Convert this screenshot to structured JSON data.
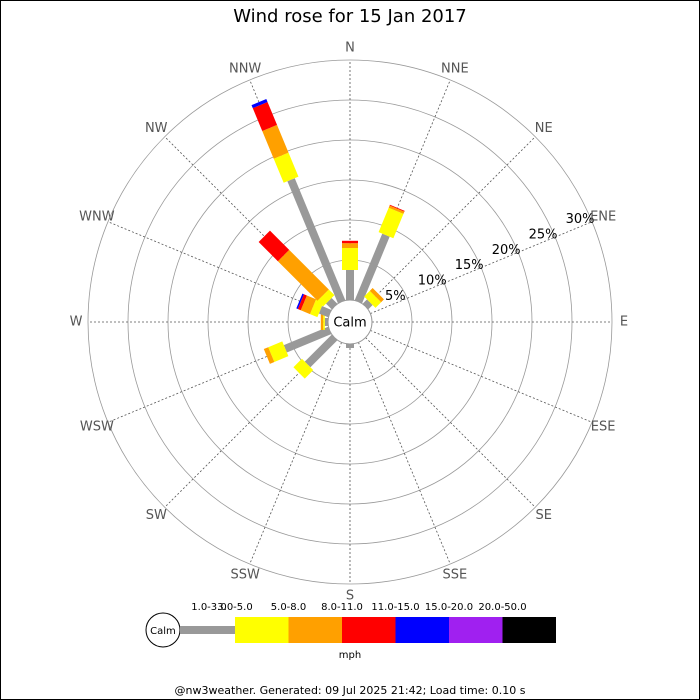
{
  "chart_data": {
    "type": "windrose",
    "title": "Wind rose for 15 Jan 2017",
    "directions": [
      "N",
      "NNE",
      "NE",
      "ENE",
      "E",
      "ESE",
      "SE",
      "SSE",
      "S",
      "SSW",
      "SW",
      "WSW",
      "W",
      "WNW",
      "NW",
      "NNW"
    ],
    "series": [
      {
        "name": "1.0-3.0",
        "color": "#999999",
        "values": [
          3.75,
          9,
          0.75,
          0,
          0,
          0,
          0,
          0,
          0.5,
          0,
          4.75,
          6,
          0.4,
          1.25,
          1,
          16.5
        ]
      },
      {
        "name": "3.0-5.0",
        "color": "#ffff00",
        "values": [
          2.75,
          3.3,
          1,
          0,
          0,
          0,
          0,
          0,
          0,
          0,
          1.5,
          1.9,
          0.2,
          1,
          1,
          3.25
        ]
      },
      {
        "name": "5.0-8.0",
        "color": "#ffa000",
        "values": [
          0.6,
          0.3,
          0.5,
          0,
          0,
          0,
          0,
          0,
          0,
          0,
          0,
          0.6,
          0.3,
          1.25,
          7,
          3.75
        ]
      },
      {
        "name": "8.0-11.0",
        "color": "#ff0000",
        "values": [
          0.3,
          0.1,
          0,
          0,
          0,
          0,
          0,
          0,
          0,
          0,
          0,
          0,
          0,
          0.4,
          3.4,
          3.1
        ]
      },
      {
        "name": "11.0-15.0",
        "color": "#0000ff",
        "values": [
          0,
          0,
          0,
          0,
          0,
          0,
          0,
          0,
          0,
          0,
          0,
          0,
          0,
          0.2,
          0,
          0.4
        ]
      },
      {
        "name": "15.0-20.0",
        "color": "#a020f0",
        "values": [
          0,
          0,
          0,
          0,
          0,
          0,
          0,
          0,
          0,
          0,
          0,
          0,
          0,
          0,
          0,
          0
        ]
      },
      {
        "name": "20.0-50.0",
        "color": "#000000",
        "values": [
          0,
          0,
          0,
          0,
          0,
          0,
          0,
          0,
          0,
          0,
          0,
          0,
          0,
          0,
          0,
          0
        ]
      }
    ],
    "rlim": [
      0,
      30
    ],
    "rticks": [
      {
        "value": 5,
        "label": "5%"
      },
      {
        "value": 10,
        "label": "10%"
      },
      {
        "value": 15,
        "label": "15%"
      },
      {
        "value": 20,
        "label": "20%"
      },
      {
        "value": 25,
        "label": "25%"
      },
      {
        "value": 30,
        "label": "30%"
      }
    ],
    "calm_label": "Calm",
    "unit_label": "mph",
    "footer": "@nw3weather. Generated: 09 Jul 2025 21:42; Load time: 0.10 s"
  }
}
